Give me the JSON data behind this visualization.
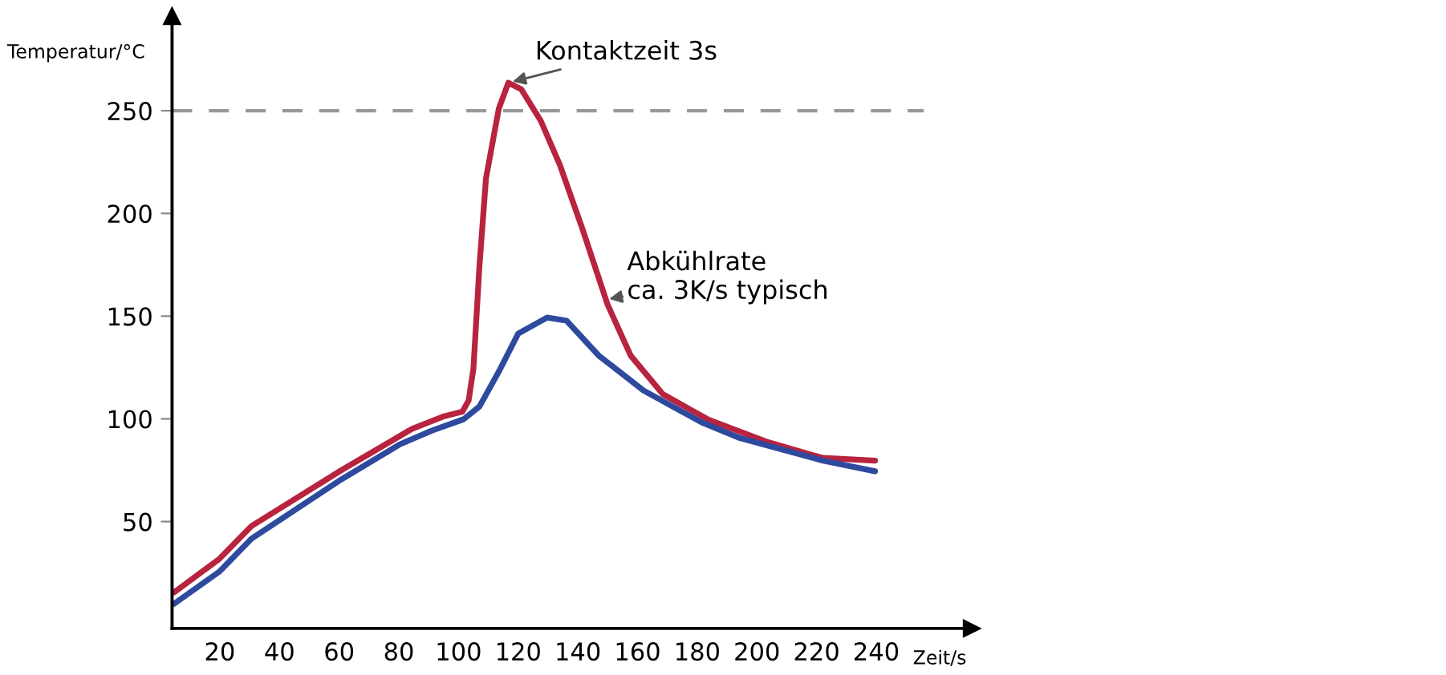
{
  "chart_data": {
    "type": "line",
    "xlabel": "Zeit/s",
    "ylabel": "Temperatur/°C",
    "xlim": [
      4,
      272
    ],
    "ylim": [
      -2,
      296
    ],
    "xticks": [
      20,
      40,
      60,
      80,
      100,
      120,
      140,
      160,
      180,
      200,
      220,
      240
    ],
    "yticks": [
      50,
      100,
      150,
      200,
      250
    ],
    "grid": false,
    "legend": false,
    "marker": "none",
    "line_style": "solid",
    "series": [
      {
        "color": "#b8233f",
        "x": [
          4.7,
          19.8,
          30.6,
          60.7,
          84.5,
          95.2,
          101.3,
          103.4,
          105,
          107,
          109.2,
          113.5,
          116.7,
          121,
          127.6,
          134,
          141.5,
          150,
          157.7,
          168.5,
          183.5,
          203,
          222,
          239.6
        ],
        "values": [
          15.6,
          31.8,
          47.8,
          75,
          95.2,
          101.3,
          103.5,
          109,
          124.5,
          174,
          217,
          251,
          263.6,
          260.5,
          245,
          223.5,
          192.6,
          155.5,
          130.8,
          112,
          99.8,
          89,
          81,
          79.7
        ]
      },
      {
        "color": "#2e4a9e",
        "x": [
          4.7,
          19.8,
          30.6,
          60.7,
          80.2,
          90.9,
          101.7,
          107,
          113.5,
          120,
          129.7,
          136.2,
          147,
          162,
          181.5,
          194.4,
          222,
          239.6
        ],
        "values": [
          10,
          25.6,
          41.7,
          70.5,
          87.5,
          94.2,
          99.8,
          106,
          123,
          141.5,
          149.3,
          147.8,
          130.8,
          113.8,
          98.3,
          90.6,
          79.7,
          74.5
        ]
      }
    ],
    "ref_lines": [
      {
        "axis": "y",
        "value": 250,
        "color": "#999999",
        "line_style": "dashed"
      }
    ],
    "annotations": [
      {
        "text": "Kontaktzeit 3s",
        "x": 116.7,
        "y": 263.6
      },
      {
        "text": "Abkühlrate\nca. 3K/s typisch",
        "x": 149,
        "y": 158
      }
    ]
  }
}
